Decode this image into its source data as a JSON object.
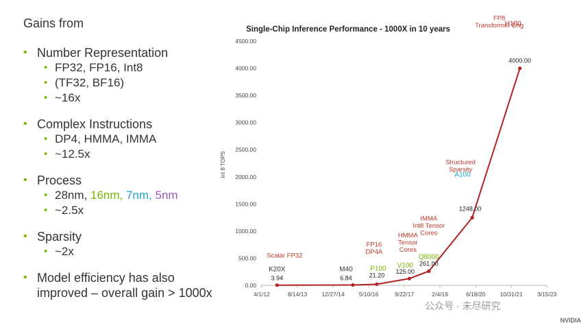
{
  "left": {
    "heading": "Gains from",
    "groups": [
      {
        "title": "Number Representation",
        "subs": [
          "FP32, FP16, Int8",
          "(TF32, BF16)",
          "~16x"
        ]
      },
      {
        "title": "Complex Instructions",
        "subs": [
          "DP4, HMMA, IMMA",
          "~12.5x"
        ]
      },
      {
        "title": "Process",
        "subs": [
          "~2.5x"
        ],
        "nodes": [
          "28nm,",
          "16nm,",
          "7nm,",
          "5nm"
        ]
      },
      {
        "title": "Sparsity",
        "subs": [
          "~2x"
        ]
      },
      {
        "title": "Model efficiency has also",
        "title2": "improved – overall gain > 1000x",
        "subs": []
      }
    ]
  },
  "colors": {
    "line": "#b22222",
    "accent_green": "#76b900",
    "teal": "#1aa6c8",
    "purple": "#9b59b6"
  },
  "chart_data": {
    "type": "line",
    "title": "Single-Chip Inference Performance - 1000X in 10 years",
    "ylabel": "Int 8 TOPS",
    "ylim": [
      0,
      4500
    ],
    "yticks": [
      "0.00",
      "500.00",
      "1000.00",
      "1500.00",
      "2000.00",
      "2500.00",
      "3000.00",
      "3500.00",
      "4000.00",
      "4500.00"
    ],
    "xticks": [
      "4/1/12",
      "8/14/13",
      "12/27/14",
      "5/10/16",
      "9/22/17",
      "2/4/19",
      "6/18/20",
      "10/31/21",
      "3/15/23"
    ],
    "x": [
      "2012-11-01",
      "2015-10-01",
      "2016-09-01",
      "2017-12-01",
      "2018-09-01",
      "2020-05-01",
      "2022-03-01"
    ],
    "values": [
      3.94,
      6.84,
      21.2,
      125,
      261,
      1248,
      4000
    ],
    "value_labels": [
      "3.94",
      "6.84",
      "21.20",
      "125.00",
      "261.00",
      "1248.00",
      "4000.00"
    ],
    "chip_labels": [
      "K20X",
      "M40",
      "P100",
      "V100",
      "Q8000",
      "A100",
      "H100"
    ],
    "annotations": [
      {
        "lines": [
          "Scalar FP32"
        ],
        "color": "red"
      },
      {
        "lines": [
          "FP16",
          "DP4A"
        ],
        "color": "red"
      },
      {
        "lines": [
          "HMMA",
          "Tensor",
          "Cores"
        ],
        "color": "red"
      },
      {
        "lines": [
          "IMMA",
          "Int8 Tensor",
          "Cores"
        ],
        "color": "red"
      },
      {
        "lines": [
          "Structured",
          "Sparsity"
        ],
        "color": "red"
      },
      {
        "lines": [
          "FP8",
          "Transformer Eng"
        ],
        "color": "red"
      }
    ]
  },
  "watermark": "公众号 · 未尽研究",
  "logo": "NVIDIA"
}
